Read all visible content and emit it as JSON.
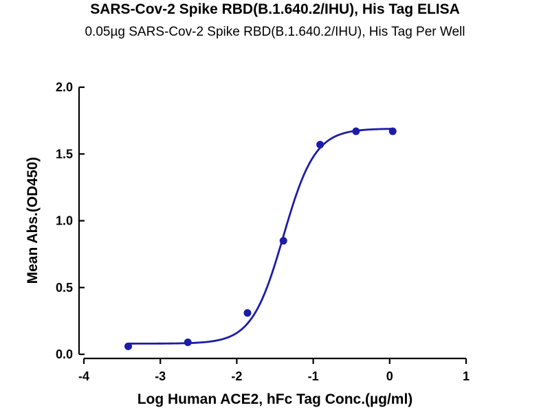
{
  "title": "SARS-Cov-2 Spike RBD(B.1.640.2/IHU), His Tag ELISA",
  "subtitle": "0.05µg SARS-Cov-2 Spike RBD(B.1.640.2/IHU), His Tag Per Well",
  "chart_data": {
    "type": "scatter",
    "xlabel": "Log Human ACE2, hFc Tag Conc.(µg/ml)",
    "ylabel": "Mean Abs.(OD450)",
    "xlim": [
      -4,
      1
    ],
    "ylim": [
      0,
      2.0
    ],
    "xticks": [
      "-4",
      "-3",
      "-2",
      "-1",
      "0",
      "1"
    ],
    "yticks": [
      "0.0",
      "0.5",
      "1.0",
      "1.5",
      "2.0"
    ],
    "grid": false,
    "color": "#1c1ca8",
    "points": [
      {
        "x": -3.42,
        "y": 0.06
      },
      {
        "x": -2.64,
        "y": 0.09
      },
      {
        "x": -1.86,
        "y": 0.31
      },
      {
        "x": -1.39,
        "y": 0.85
      },
      {
        "x": -0.91,
        "y": 1.57
      },
      {
        "x": -0.44,
        "y": 1.67
      },
      {
        "x": 0.04,
        "y": 1.67
      }
    ],
    "fit": {
      "model": "4PL",
      "bottom": 0.08,
      "top": 1.69,
      "log_ec50": -1.39,
      "hill": 2.1,
      "x_range": [
        -3.42,
        0.04
      ]
    }
  }
}
